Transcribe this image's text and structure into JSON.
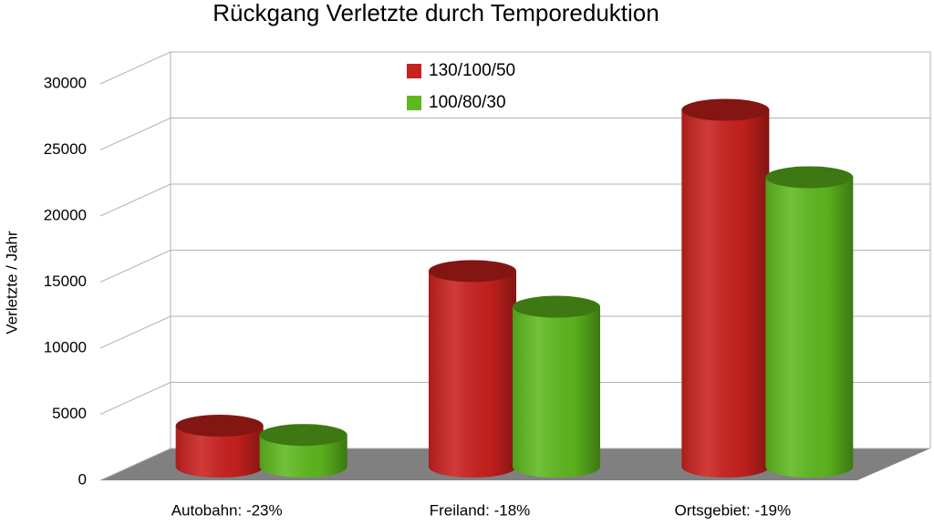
{
  "chart_data": {
    "type": "bar3d",
    "title": "Rückgang Verletzte durch Temporeduktion",
    "y_label": "Verletzte / Jahr",
    "categories": [
      "Autobahn: -23%",
      "Freiland: -18%",
      "Ortsgebiet: -19%"
    ],
    "series": [
      {
        "name": "130/100/50",
        "color": "#c9211e",
        "values": [
          3100,
          14800,
          27000
        ]
      },
      {
        "name": "100/80/30",
        "color": "#5eb91e",
        "values": [
          2400,
          12100,
          21900
        ]
      }
    ],
    "ylim": [
      0,
      30000
    ],
    "yticks": [
      0,
      5000,
      10000,
      15000,
      20000,
      25000,
      30000
    ],
    "grid": true
  }
}
